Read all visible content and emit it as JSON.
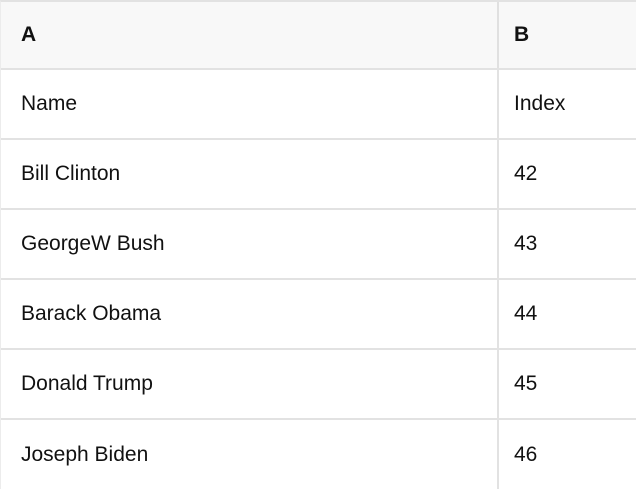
{
  "table": {
    "columns": [
      {
        "id": "A",
        "header": "A"
      },
      {
        "id": "B",
        "header": "B"
      }
    ],
    "rows": [
      [
        "Name",
        "Index"
      ],
      [
        "Bill Clinton",
        "42"
      ],
      [
        "GeorgeW Bush",
        "43"
      ],
      [
        "Barack Obama",
        "44"
      ],
      [
        "Donald Trump",
        "45"
      ],
      [
        "Joseph Biden",
        "46"
      ]
    ]
  },
  "colors": {
    "header_bg": "#f8f8f8",
    "border": "#e2e2e2",
    "text": "#111111"
  }
}
